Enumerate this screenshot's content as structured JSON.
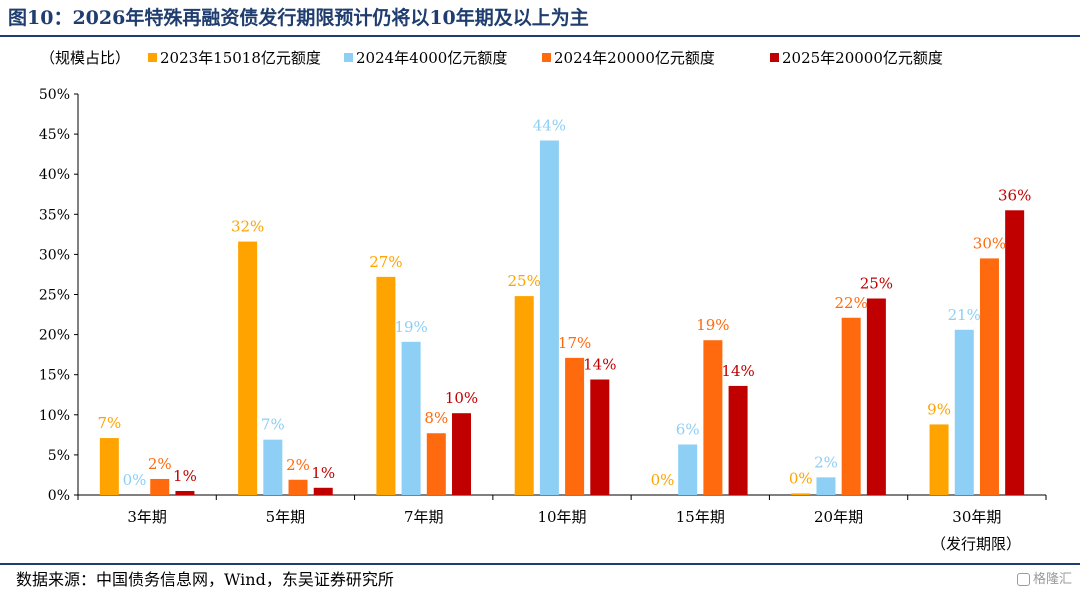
{
  "figure": {
    "title": "图10：2026年特殊再融资债发行期限预计仍将以10年期及以上为主",
    "source": "数据来源：中国债务信息网，Wind，东吴证券研究所",
    "watermark": "格隆汇"
  },
  "chart_data": {
    "type": "bar",
    "title": "",
    "unit_label": "（规模占比）",
    "xlabel": "（发行期限）",
    "ylabel": "",
    "ylim": [
      0,
      50
    ],
    "yticks": [
      0,
      5,
      10,
      15,
      20,
      25,
      30,
      35,
      40,
      45,
      50
    ],
    "y_tick_format": "{v}%",
    "grid": false,
    "legend_position": "top",
    "categories": [
      "3年期",
      "5年期",
      "7年期",
      "10年期",
      "15年期",
      "20年期",
      "30年期"
    ],
    "series": [
      {
        "name": "2023年15018亿元额度",
        "color": "#ffa300",
        "values": [
          7.1,
          31.6,
          27.2,
          24.8,
          0,
          0.2,
          8.8
        ],
        "labels": [
          "7%",
          "32%",
          "27%",
          "25%",
          "0%",
          "0%",
          "9%"
        ]
      },
      {
        "name": "2024年4000亿元额度",
        "color": "#8dcff5",
        "values": [
          0,
          6.9,
          19.1,
          44.2,
          6.3,
          2.2,
          20.6
        ],
        "labels": [
          "0%",
          "7%",
          "19%",
          "44%",
          "6%",
          "2%",
          "21%"
        ]
      },
      {
        "name": "2024年20000亿元额度",
        "color": "#ff6a0e",
        "values": [
          2.0,
          1.9,
          7.7,
          17.1,
          19.3,
          22.1,
          29.5
        ],
        "labels": [
          "2%",
          "2%",
          "8%",
          "17%",
          "19%",
          "22%",
          "30%"
        ]
      },
      {
        "name": "2025年20000亿元额度",
        "color": "#c00000",
        "values": [
          0.5,
          0.9,
          10.2,
          14.4,
          13.6,
          24.5,
          35.5
        ],
        "labels": [
          "1%",
          "1%",
          "10%",
          "14%",
          "14%",
          "25%",
          "36%"
        ]
      }
    ]
  }
}
